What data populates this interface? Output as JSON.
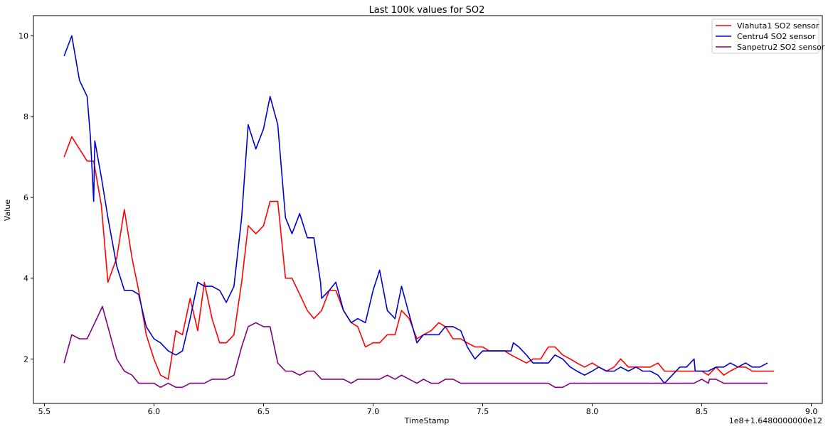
{
  "chart_data": {
    "type": "line",
    "title": "Last 100k values for SO2",
    "xlabel": "TimeStamp",
    "ylabel": "Value",
    "x_offset_label": "1e8+1.6480000000e12",
    "xlim": [
      5.45,
      9.05
    ],
    "ylim": [
      0.9,
      10.5
    ],
    "xticks": [
      5.5,
      6.0,
      6.5,
      7.0,
      7.5,
      8.0,
      8.5,
      9.0
    ],
    "xtick_labels": [
      "5.5",
      "6.0",
      "6.5",
      "7.0",
      "7.5",
      "8.0",
      "8.5",
      "9.0"
    ],
    "yticks": [
      2,
      4,
      6,
      8,
      10
    ],
    "ytick_labels": [
      "2",
      "4",
      "6",
      "8",
      "10"
    ],
    "legend_position": "top-right",
    "grid": false,
    "series": [
      {
        "name": "Vlahuta1 SO2 sensor",
        "color": "#ff0000",
        "points": [
          [
            5.59,
            7.0
          ],
          [
            5.625,
            7.5
          ],
          [
            5.66,
            7.2
          ],
          [
            5.695,
            6.9
          ],
          [
            5.725,
            6.9
          ],
          [
            5.76,
            5.8
          ],
          [
            5.79,
            3.9
          ],
          [
            5.83,
            4.5
          ],
          [
            5.865,
            5.7
          ],
          [
            5.9,
            4.5
          ],
          [
            5.93,
            3.7
          ],
          [
            5.965,
            2.6
          ],
          [
            6.0,
            2.0
          ],
          [
            6.03,
            1.6
          ],
          [
            6.065,
            1.5
          ],
          [
            6.1,
            2.7
          ],
          [
            6.13,
            2.6
          ],
          [
            6.165,
            3.5
          ],
          [
            6.2,
            2.7
          ],
          [
            6.23,
            3.9
          ],
          [
            6.265,
            3.0
          ],
          [
            6.3,
            2.4
          ],
          [
            6.33,
            2.4
          ],
          [
            6.365,
            2.6
          ],
          [
            6.4,
            3.9
          ],
          [
            6.43,
            5.3
          ],
          [
            6.465,
            5.1
          ],
          [
            6.5,
            5.3
          ],
          [
            6.53,
            5.9
          ],
          [
            6.565,
            5.9
          ],
          [
            6.6,
            4.0
          ],
          [
            6.63,
            4.0
          ],
          [
            6.665,
            3.6
          ],
          [
            6.7,
            3.2
          ],
          [
            6.73,
            3.0
          ],
          [
            6.765,
            3.2
          ],
          [
            6.8,
            3.7
          ],
          [
            6.83,
            3.7
          ],
          [
            6.865,
            3.2
          ],
          [
            6.9,
            2.9
          ],
          [
            6.93,
            2.8
          ],
          [
            6.965,
            2.3
          ],
          [
            7.0,
            2.4
          ],
          [
            7.03,
            2.4
          ],
          [
            7.065,
            2.6
          ],
          [
            7.1,
            2.6
          ],
          [
            7.13,
            3.2
          ],
          [
            7.165,
            3.0
          ],
          [
            7.2,
            2.5
          ],
          [
            7.23,
            2.6
          ],
          [
            7.265,
            2.7
          ],
          [
            7.3,
            2.9
          ],
          [
            7.33,
            2.8
          ],
          [
            7.365,
            2.5
          ],
          [
            7.4,
            2.5
          ],
          [
            7.43,
            2.4
          ],
          [
            7.465,
            2.3
          ],
          [
            7.5,
            2.3
          ],
          [
            7.53,
            2.2
          ],
          [
            7.565,
            2.2
          ],
          [
            7.6,
            2.2
          ],
          [
            7.63,
            2.1
          ],
          [
            7.665,
            2.0
          ],
          [
            7.7,
            1.9
          ],
          [
            7.73,
            2.0
          ],
          [
            7.765,
            2.0
          ],
          [
            7.8,
            2.3
          ],
          [
            7.83,
            2.3
          ],
          [
            7.865,
            2.1
          ],
          [
            7.9,
            2.0
          ],
          [
            7.93,
            1.9
          ],
          [
            7.965,
            1.8
          ],
          [
            8.0,
            1.9
          ],
          [
            8.03,
            1.8
          ],
          [
            8.065,
            1.7
          ],
          [
            8.1,
            1.8
          ],
          [
            8.13,
            2.0
          ],
          [
            8.165,
            1.8
          ],
          [
            8.2,
            1.8
          ],
          [
            8.23,
            1.8
          ],
          [
            8.265,
            1.8
          ],
          [
            8.3,
            1.9
          ],
          [
            8.33,
            1.7
          ],
          [
            8.365,
            1.7
          ],
          [
            8.4,
            1.7
          ],
          [
            8.43,
            1.7
          ],
          [
            8.465,
            1.7
          ],
          [
            8.5,
            1.7
          ],
          [
            8.53,
            1.6
          ],
          [
            8.565,
            1.8
          ],
          [
            8.6,
            1.6
          ],
          [
            8.63,
            1.7
          ],
          [
            8.665,
            1.8
          ],
          [
            8.7,
            1.8
          ],
          [
            8.73,
            1.7
          ],
          [
            8.765,
            1.7
          ],
          [
            8.8,
            1.7
          ],
          [
            8.83,
            1.7
          ]
        ]
      },
      {
        "name": "Centru4 SO2 sensor",
        "color": "#0000cc",
        "points": [
          [
            5.59,
            9.5
          ],
          [
            5.625,
            10.0
          ],
          [
            5.66,
            8.9
          ],
          [
            5.695,
            8.5
          ],
          [
            5.71,
            7.5
          ],
          [
            5.725,
            5.9
          ],
          [
            5.73,
            7.4
          ],
          [
            5.76,
            6.5
          ],
          [
            5.79,
            5.5
          ],
          [
            5.83,
            4.3
          ],
          [
            5.865,
            3.7
          ],
          [
            5.9,
            3.7
          ],
          [
            5.93,
            3.6
          ],
          [
            5.965,
            2.8
          ],
          [
            6.0,
            2.5
          ],
          [
            6.03,
            2.4
          ],
          [
            6.065,
            2.2
          ],
          [
            6.1,
            2.1
          ],
          [
            6.13,
            2.2
          ],
          [
            6.165,
            3.0
          ],
          [
            6.2,
            3.9
          ],
          [
            6.23,
            3.8
          ],
          [
            6.265,
            3.8
          ],
          [
            6.3,
            3.7
          ],
          [
            6.33,
            3.4
          ],
          [
            6.365,
            3.8
          ],
          [
            6.4,
            5.5
          ],
          [
            6.43,
            7.8
          ],
          [
            6.465,
            7.2
          ],
          [
            6.5,
            7.7
          ],
          [
            6.53,
            8.5
          ],
          [
            6.565,
            7.8
          ],
          [
            6.6,
            5.5
          ],
          [
            6.63,
            5.1
          ],
          [
            6.665,
            5.6
          ],
          [
            6.7,
            5.0
          ],
          [
            6.73,
            5.0
          ],
          [
            6.76,
            3.9
          ],
          [
            6.765,
            3.5
          ],
          [
            6.8,
            3.7
          ],
          [
            6.83,
            3.9
          ],
          [
            6.865,
            3.2
          ],
          [
            6.9,
            2.9
          ],
          [
            6.93,
            3.0
          ],
          [
            6.965,
            2.9
          ],
          [
            7.0,
            3.7
          ],
          [
            7.03,
            4.2
          ],
          [
            7.065,
            3.2
          ],
          [
            7.1,
            3.0
          ],
          [
            7.13,
            3.8
          ],
          [
            7.165,
            3.1
          ],
          [
            7.2,
            2.4
          ],
          [
            7.23,
            2.6
          ],
          [
            7.265,
            2.6
          ],
          [
            7.3,
            2.6
          ],
          [
            7.33,
            2.8
          ],
          [
            7.365,
            2.8
          ],
          [
            7.4,
            2.7
          ],
          [
            7.43,
            2.3
          ],
          [
            7.465,
            2.0
          ],
          [
            7.5,
            2.2
          ],
          [
            7.53,
            2.2
          ],
          [
            7.565,
            2.2
          ],
          [
            7.6,
            2.2
          ],
          [
            7.63,
            2.2
          ],
          [
            7.64,
            2.4
          ],
          [
            7.665,
            2.3
          ],
          [
            7.7,
            2.1
          ],
          [
            7.73,
            1.9
          ],
          [
            7.765,
            1.9
          ],
          [
            7.8,
            1.9
          ],
          [
            7.83,
            2.1
          ],
          [
            7.865,
            2.0
          ],
          [
            7.9,
            1.8
          ],
          [
            7.93,
            1.7
          ],
          [
            7.965,
            1.6
          ],
          [
            8.0,
            1.7
          ],
          [
            8.03,
            1.8
          ],
          [
            8.065,
            1.7
          ],
          [
            8.1,
            1.7
          ],
          [
            8.13,
            1.8
          ],
          [
            8.165,
            1.7
          ],
          [
            8.2,
            1.8
          ],
          [
            8.23,
            1.7
          ],
          [
            8.265,
            1.7
          ],
          [
            8.3,
            1.6
          ],
          [
            8.33,
            1.4
          ],
          [
            8.365,
            1.6
          ],
          [
            8.4,
            1.8
          ],
          [
            8.43,
            1.8
          ],
          [
            8.465,
            2.0
          ],
          [
            8.47,
            1.7
          ],
          [
            8.5,
            1.7
          ],
          [
            8.53,
            1.7
          ],
          [
            8.565,
            1.8
          ],
          [
            8.6,
            1.8
          ],
          [
            8.63,
            1.9
          ],
          [
            8.665,
            1.8
          ],
          [
            8.7,
            1.9
          ],
          [
            8.73,
            1.8
          ],
          [
            8.765,
            1.8
          ],
          [
            8.8,
            1.9
          ]
        ]
      },
      {
        "name": "Sanpetru2 SO2 sensor",
        "color": "#800080",
        "points": [
          [
            5.59,
            1.9
          ],
          [
            5.625,
            2.6
          ],
          [
            5.66,
            2.5
          ],
          [
            5.695,
            2.5
          ],
          [
            5.73,
            2.9
          ],
          [
            5.765,
            3.3
          ],
          [
            5.8,
            2.6
          ],
          [
            5.83,
            2.0
          ],
          [
            5.865,
            1.7
          ],
          [
            5.9,
            1.6
          ],
          [
            5.93,
            1.4
          ],
          [
            5.965,
            1.4
          ],
          [
            6.0,
            1.4
          ],
          [
            6.03,
            1.3
          ],
          [
            6.065,
            1.4
          ],
          [
            6.1,
            1.3
          ],
          [
            6.13,
            1.3
          ],
          [
            6.165,
            1.4
          ],
          [
            6.2,
            1.4
          ],
          [
            6.23,
            1.4
          ],
          [
            6.265,
            1.5
          ],
          [
            6.3,
            1.5
          ],
          [
            6.33,
            1.5
          ],
          [
            6.365,
            1.6
          ],
          [
            6.4,
            2.3
          ],
          [
            6.43,
            2.8
          ],
          [
            6.465,
            2.9
          ],
          [
            6.5,
            2.8
          ],
          [
            6.53,
            2.8
          ],
          [
            6.565,
            1.9
          ],
          [
            6.6,
            1.7
          ],
          [
            6.63,
            1.7
          ],
          [
            6.665,
            1.6
          ],
          [
            6.7,
            1.7
          ],
          [
            6.73,
            1.7
          ],
          [
            6.765,
            1.5
          ],
          [
            6.8,
            1.5
          ],
          [
            6.83,
            1.5
          ],
          [
            6.865,
            1.5
          ],
          [
            6.9,
            1.4
          ],
          [
            6.93,
            1.5
          ],
          [
            6.965,
            1.5
          ],
          [
            7.0,
            1.5
          ],
          [
            7.03,
            1.5
          ],
          [
            7.065,
            1.6
          ],
          [
            7.1,
            1.5
          ],
          [
            7.13,
            1.6
          ],
          [
            7.165,
            1.5
          ],
          [
            7.2,
            1.4
          ],
          [
            7.23,
            1.5
          ],
          [
            7.265,
            1.4
          ],
          [
            7.3,
            1.4
          ],
          [
            7.33,
            1.5
          ],
          [
            7.365,
            1.5
          ],
          [
            7.4,
            1.4
          ],
          [
            7.43,
            1.4
          ],
          [
            7.5,
            1.4
          ],
          [
            7.6,
            1.4
          ],
          [
            7.7,
            1.4
          ],
          [
            7.8,
            1.4
          ],
          [
            7.83,
            1.3
          ],
          [
            7.865,
            1.3
          ],
          [
            7.9,
            1.4
          ],
          [
            8.0,
            1.4
          ],
          [
            8.1,
            1.4
          ],
          [
            8.2,
            1.4
          ],
          [
            8.3,
            1.4
          ],
          [
            8.4,
            1.4
          ],
          [
            8.465,
            1.4
          ],
          [
            8.5,
            1.5
          ],
          [
            8.53,
            1.4
          ],
          [
            8.535,
            1.5
          ],
          [
            8.565,
            1.5
          ],
          [
            8.6,
            1.4
          ],
          [
            8.7,
            1.4
          ],
          [
            8.8,
            1.4
          ]
        ]
      }
    ]
  }
}
